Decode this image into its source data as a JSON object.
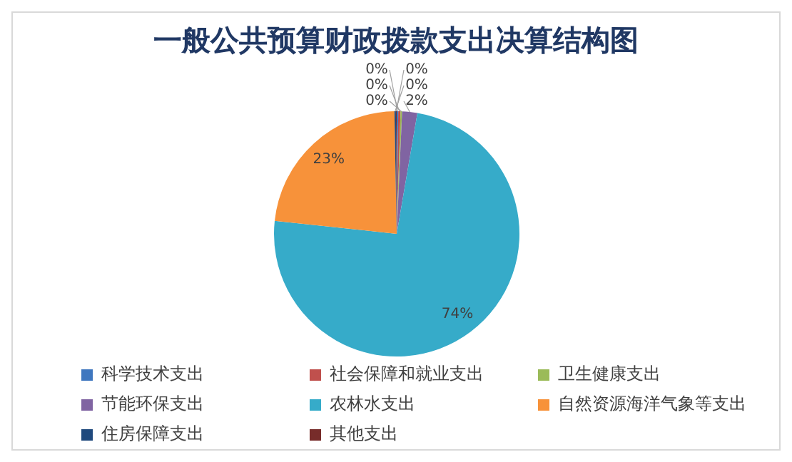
{
  "chart_data": {
    "type": "pie",
    "title": "一般公共预算财政拨款支出决算结构图",
    "categories": [
      "科学技术支出",
      "社会保障和就业支出",
      "卫生健康支出",
      "节能环保支出",
      "农林水支出",
      "自然资源海洋气象等支出",
      "住房保障支出",
      "其他支出"
    ],
    "values": [
      0.2,
      0.3,
      0.2,
      2,
      74,
      23,
      0.2,
      0.1
    ],
    "colors": [
      "#3f77bf",
      "#c0504d",
      "#9bbb59",
      "#8064a2",
      "#36abc9",
      "#f7923a",
      "#1f497d",
      "#772c2a"
    ],
    "value_labels": [
      "0%",
      "0%",
      "0%",
      "2%",
      "74%",
      "23%",
      "0%",
      "0%"
    ],
    "legend": "bottom"
  }
}
